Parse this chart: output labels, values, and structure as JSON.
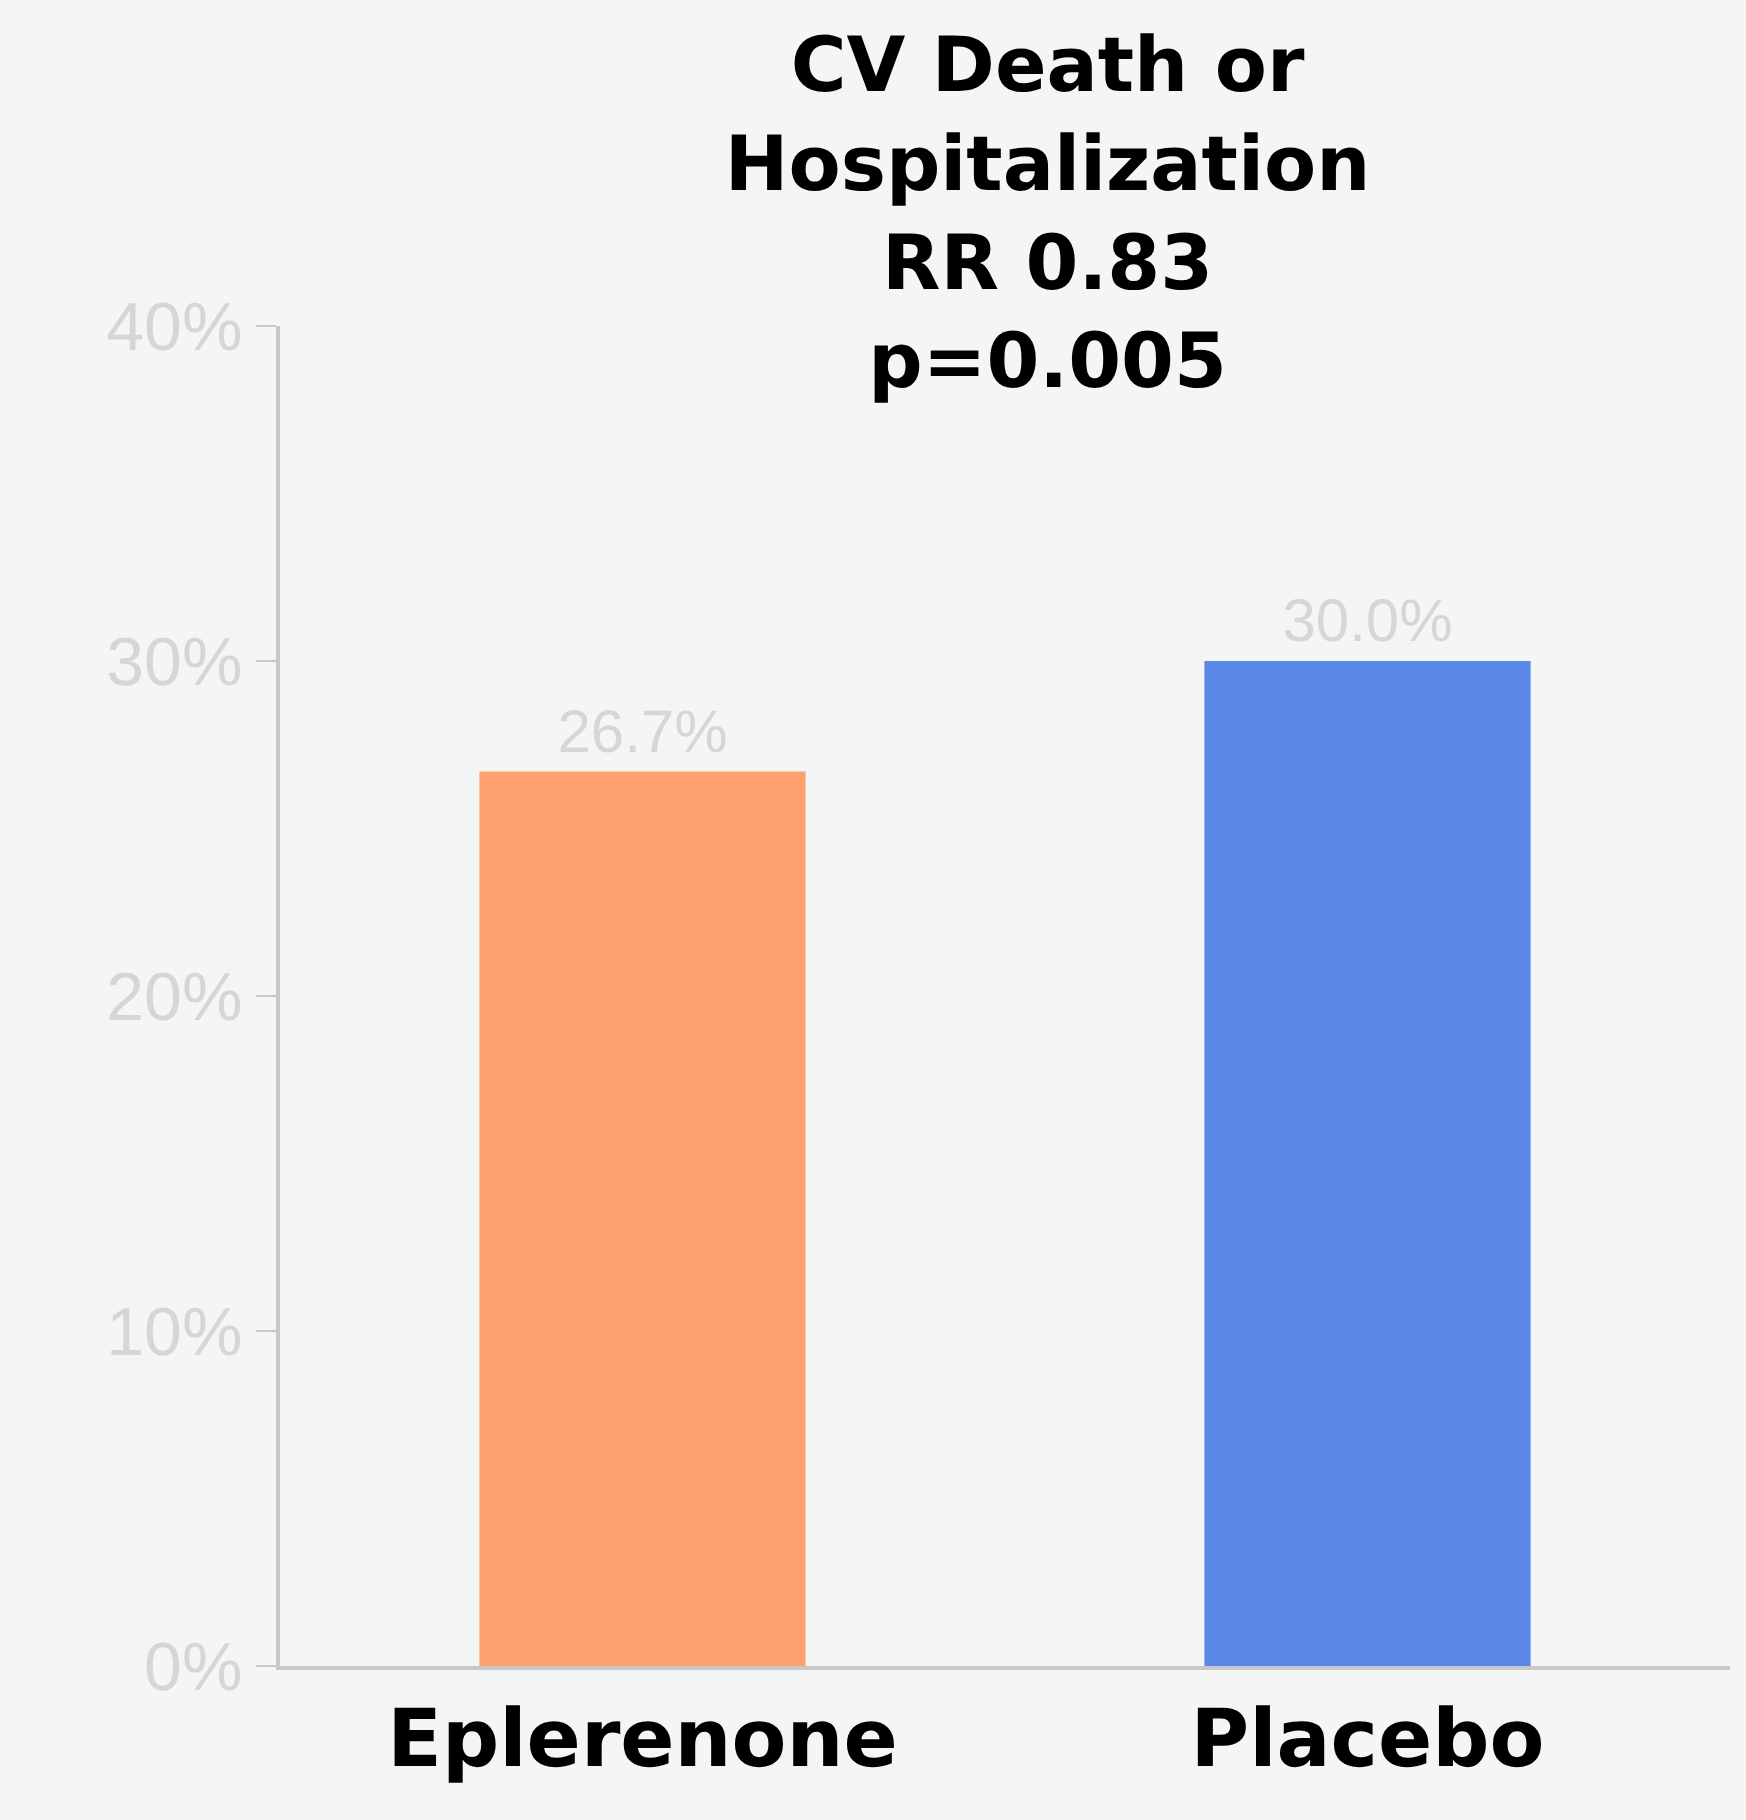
{
  "chart_data": {
    "type": "bar",
    "title": "CV Death or\nHospitalization\nRR 0.83\np=0.005",
    "categories": [
      "Eplerenone",
      "Placebo"
    ],
    "values": [
      26.7,
      30.0
    ],
    "value_labels": [
      "26.7%",
      "30.0%"
    ],
    "colors": [
      "#ffa070",
      "#5a88e8"
    ],
    "ylim": [
      0,
      40
    ],
    "yticks": [
      {
        "value": 0,
        "label": "0%"
      },
      {
        "value": 10,
        "label": "10%"
      },
      {
        "value": 20,
        "label": "20%"
      },
      {
        "value": 30,
        "label": "30%"
      },
      {
        "value": 40,
        "label": "40%"
      }
    ],
    "grid": false
  }
}
